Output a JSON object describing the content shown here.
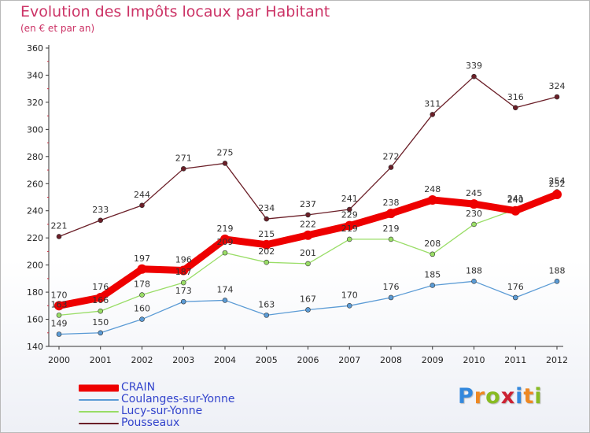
{
  "header": {
    "title": "Evolution des Impôts locaux par Habitant",
    "subtitle": "(en € et par an)"
  },
  "brand": {
    "letters": [
      {
        "ch": "P",
        "color": "#3388dd"
      },
      {
        "ch": "r",
        "color": "#ee8822"
      },
      {
        "ch": "o",
        "color": "#88bb22"
      },
      {
        "ch": "x",
        "color": "#cc2233"
      },
      {
        "ch": "i",
        "color": "#3388dd"
      },
      {
        "ch": "t",
        "color": "#ee8822"
      },
      {
        "ch": "i",
        "color": "#88bb22"
      }
    ]
  },
  "chart_data": {
    "type": "line",
    "title": "Evolution des Impôts locaux par Habitant",
    "subtitle": "(en € et par an)",
    "xlabel": "",
    "ylabel": "",
    "categories": [
      "2000",
      "2001",
      "2002",
      "2003",
      "2004",
      "2005",
      "2006",
      "2007",
      "2008",
      "2009",
      "2010",
      "2011",
      "2012"
    ],
    "ylim": [
      140,
      360
    ],
    "yticks": [
      140,
      160,
      180,
      200,
      220,
      240,
      260,
      280,
      300,
      320,
      340,
      360
    ],
    "grid": false,
    "legend": "bottom-left",
    "series": [
      {
        "name": "Pousseaux",
        "color": "#6b1f28",
        "values": [
          221,
          233,
          244,
          271,
          275,
          234,
          237,
          241,
          272,
          311,
          339,
          316,
          324
        ]
      },
      {
        "name": "Coulanges-sur-Yonne",
        "color": "#5b9bd5",
        "values": [
          149,
          150,
          160,
          173,
          174,
          163,
          167,
          170,
          176,
          185,
          188,
          176,
          188
        ]
      },
      {
        "name": "Lucy-sur-Yonne",
        "color": "#99dd66",
        "values": [
          163,
          166,
          178,
          187,
          209,
          202,
          201,
          219,
          219,
          208,
          230,
          241,
          254
        ]
      },
      {
        "name": "CRAIN",
        "color": "#ee0000",
        "values": [
          170,
          176,
          197,
          196,
          219,
          215,
          222,
          229,
          238,
          248,
          245,
          240,
          252
        ]
      }
    ],
    "legend_order": [
      "CRAIN",
      "Coulanges-sur-Yonne",
      "Lucy-sur-Yonne",
      "Pousseaux"
    ]
  }
}
